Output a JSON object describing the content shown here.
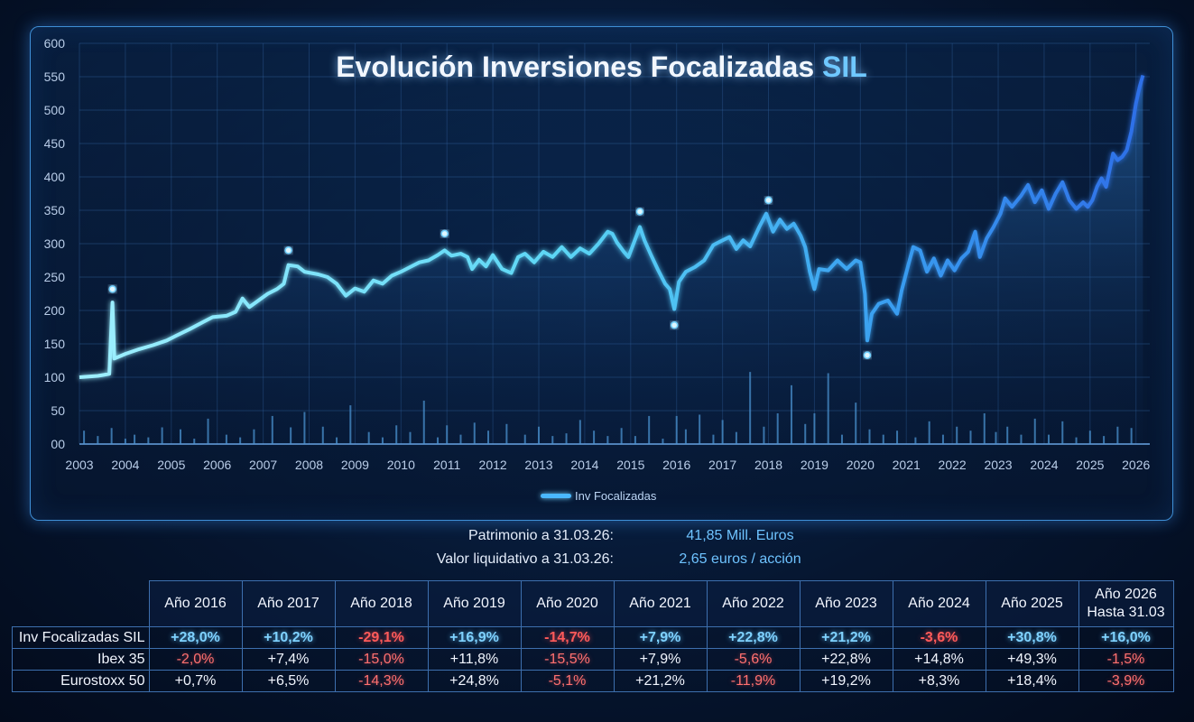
{
  "chart_data": {
    "type": "line",
    "title_main": "Evolución Inversiones Focalizadas",
    "title_accent": "SIL",
    "ylim": [
      0,
      600
    ],
    "yticks": [
      "00",
      "50",
      "100",
      "150",
      "200",
      "250",
      "300",
      "350",
      "400",
      "450",
      "500",
      "550",
      "600"
    ],
    "xlim": [
      2003,
      2026.3
    ],
    "xticks": [
      "2003",
      "2004",
      "2005",
      "2006",
      "2007",
      "2008",
      "2009",
      "2010",
      "2011",
      "2012",
      "2013",
      "2014",
      "2015",
      "2016",
      "2017",
      "2018",
      "2019",
      "2020",
      "2021",
      "2022",
      "2023",
      "2024",
      "2025",
      "2026"
    ],
    "legend": "Inv Focalizadas",
    "grid": true,
    "series": [
      {
        "name": "Inv Focalizadas",
        "points": [
          [
            2003.0,
            100
          ],
          [
            2003.4,
            102
          ],
          [
            2003.65,
            105
          ],
          [
            2003.72,
            212
          ],
          [
            2003.76,
            128
          ],
          [
            2004.0,
            135
          ],
          [
            2004.3,
            142
          ],
          [
            2004.6,
            148
          ],
          [
            2004.9,
            155
          ],
          [
            2005.1,
            162
          ],
          [
            2005.4,
            172
          ],
          [
            2005.7,
            183
          ],
          [
            2005.9,
            190
          ],
          [
            2006.2,
            192
          ],
          [
            2006.4,
            198
          ],
          [
            2006.55,
            218
          ],
          [
            2006.7,
            205
          ],
          [
            2006.9,
            215
          ],
          [
            2007.1,
            225
          ],
          [
            2007.3,
            232
          ],
          [
            2007.45,
            240
          ],
          [
            2007.55,
            268
          ],
          [
            2007.75,
            266
          ],
          [
            2007.9,
            258
          ],
          [
            2008.2,
            254
          ],
          [
            2008.4,
            250
          ],
          [
            2008.6,
            240
          ],
          [
            2008.8,
            222
          ],
          [
            2009.0,
            233
          ],
          [
            2009.2,
            228
          ],
          [
            2009.4,
            245
          ],
          [
            2009.6,
            240
          ],
          [
            2009.8,
            252
          ],
          [
            2010.0,
            258
          ],
          [
            2010.2,
            265
          ],
          [
            2010.4,
            272
          ],
          [
            2010.6,
            275
          ],
          [
            2010.8,
            283
          ],
          [
            2010.95,
            290
          ],
          [
            2011.1,
            282
          ],
          [
            2011.3,
            285
          ],
          [
            2011.45,
            280
          ],
          [
            2011.55,
            262
          ],
          [
            2011.7,
            276
          ],
          [
            2011.85,
            266
          ],
          [
            2012.0,
            283
          ],
          [
            2012.2,
            262
          ],
          [
            2012.4,
            256
          ],
          [
            2012.55,
            280
          ],
          [
            2012.7,
            285
          ],
          [
            2012.9,
            272
          ],
          [
            2013.1,
            288
          ],
          [
            2013.3,
            280
          ],
          [
            2013.5,
            295
          ],
          [
            2013.7,
            280
          ],
          [
            2013.9,
            293
          ],
          [
            2014.1,
            285
          ],
          [
            2014.3,
            300
          ],
          [
            2014.5,
            318
          ],
          [
            2014.6,
            315
          ],
          [
            2014.7,
            302
          ],
          [
            2014.85,
            288
          ],
          [
            2014.95,
            280
          ],
          [
            2015.05,
            298
          ],
          [
            2015.2,
            325
          ],
          [
            2015.3,
            305
          ],
          [
            2015.45,
            282
          ],
          [
            2015.6,
            260
          ],
          [
            2015.75,
            240
          ],
          [
            2015.85,
            232
          ],
          [
            2015.95,
            202
          ],
          [
            2016.05,
            243
          ],
          [
            2016.2,
            258
          ],
          [
            2016.4,
            265
          ],
          [
            2016.6,
            275
          ],
          [
            2016.8,
            298
          ],
          [
            2017.0,
            305
          ],
          [
            2017.15,
            310
          ],
          [
            2017.3,
            292
          ],
          [
            2017.45,
            305
          ],
          [
            2017.6,
            296
          ],
          [
            2017.8,
            325
          ],
          [
            2017.95,
            345
          ],
          [
            2018.1,
            318
          ],
          [
            2018.25,
            336
          ],
          [
            2018.4,
            322
          ],
          [
            2018.55,
            330
          ],
          [
            2018.7,
            312
          ],
          [
            2018.8,
            295
          ],
          [
            2018.9,
            258
          ],
          [
            2019.0,
            232
          ],
          [
            2019.1,
            262
          ],
          [
            2019.3,
            260
          ],
          [
            2019.5,
            275
          ],
          [
            2019.7,
            262
          ],
          [
            2019.9,
            275
          ],
          [
            2020.0,
            272
          ],
          [
            2020.1,
            225
          ],
          [
            2020.15,
            155
          ],
          [
            2020.25,
            195
          ],
          [
            2020.4,
            210
          ],
          [
            2020.6,
            215
          ],
          [
            2020.8,
            195
          ],
          [
            2020.9,
            230
          ],
          [
            2021.05,
            270
          ],
          [
            2021.15,
            295
          ],
          [
            2021.3,
            290
          ],
          [
            2021.45,
            258
          ],
          [
            2021.6,
            278
          ],
          [
            2021.75,
            252
          ],
          [
            2021.9,
            275
          ],
          [
            2022.05,
            260
          ],
          [
            2022.2,
            278
          ],
          [
            2022.35,
            288
          ],
          [
            2022.5,
            318
          ],
          [
            2022.6,
            280
          ],
          [
            2022.75,
            308
          ],
          [
            2022.9,
            325
          ],
          [
            2023.05,
            345
          ],
          [
            2023.15,
            368
          ],
          [
            2023.3,
            355
          ],
          [
            2023.5,
            372
          ],
          [
            2023.65,
            388
          ],
          [
            2023.8,
            362
          ],
          [
            2023.95,
            380
          ],
          [
            2024.1,
            352
          ],
          [
            2024.25,
            375
          ],
          [
            2024.4,
            392
          ],
          [
            2024.55,
            365
          ],
          [
            2024.7,
            352
          ],
          [
            2024.85,
            362
          ],
          [
            2024.95,
            355
          ],
          [
            2025.05,
            365
          ],
          [
            2025.15,
            385
          ],
          [
            2025.25,
            398
          ],
          [
            2025.35,
            385
          ],
          [
            2025.5,
            435
          ],
          [
            2025.6,
            425
          ],
          [
            2025.7,
            430
          ],
          [
            2025.8,
            440
          ],
          [
            2025.9,
            468
          ],
          [
            2026.0,
            510
          ],
          [
            2026.08,
            535
          ],
          [
            2026.15,
            552
          ]
        ]
      }
    ],
    "volume": [
      [
        2003.1,
        20
      ],
      [
        2003.4,
        12
      ],
      [
        2003.7,
        24
      ],
      [
        2004.0,
        8
      ],
      [
        2004.2,
        14
      ],
      [
        2004.5,
        10
      ],
      [
        2004.8,
        25
      ],
      [
        2005.2,
        22
      ],
      [
        2005.5,
        8
      ],
      [
        2005.8,
        38
      ],
      [
        2006.2,
        14
      ],
      [
        2006.5,
        10
      ],
      [
        2006.8,
        22
      ],
      [
        2007.2,
        42
      ],
      [
        2007.6,
        25
      ],
      [
        2007.9,
        48
      ],
      [
        2008.3,
        26
      ],
      [
        2008.6,
        10
      ],
      [
        2008.9,
        58
      ],
      [
        2009.3,
        18
      ],
      [
        2009.6,
        10
      ],
      [
        2009.9,
        28
      ],
      [
        2010.2,
        18
      ],
      [
        2010.5,
        65
      ],
      [
        2010.8,
        10
      ],
      [
        2011.0,
        28
      ],
      [
        2011.3,
        14
      ],
      [
        2011.6,
        32
      ],
      [
        2011.9,
        20
      ],
      [
        2012.3,
        30
      ],
      [
        2012.7,
        14
      ],
      [
        2013.0,
        26
      ],
      [
        2013.3,
        12
      ],
      [
        2013.6,
        16
      ],
      [
        2013.9,
        36
      ],
      [
        2014.2,
        20
      ],
      [
        2014.5,
        12
      ],
      [
        2014.8,
        24
      ],
      [
        2015.1,
        12
      ],
      [
        2015.4,
        42
      ],
      [
        2015.7,
        8
      ],
      [
        2016.0,
        42
      ],
      [
        2016.2,
        22
      ],
      [
        2016.5,
        44
      ],
      [
        2016.8,
        14
      ],
      [
        2017.0,
        36
      ],
      [
        2017.3,
        18
      ],
      [
        2017.6,
        108
      ],
      [
        2017.9,
        26
      ],
      [
        2018.2,
        46
      ],
      [
        2018.5,
        88
      ],
      [
        2018.8,
        30
      ],
      [
        2019.0,
        46
      ],
      [
        2019.3,
        106
      ],
      [
        2019.6,
        14
      ],
      [
        2019.9,
        62
      ],
      [
        2020.2,
        22
      ],
      [
        2020.5,
        14
      ],
      [
        2020.8,
        20
      ],
      [
        2021.2,
        10
      ],
      [
        2021.5,
        34
      ],
      [
        2021.8,
        14
      ],
      [
        2022.1,
        26
      ],
      [
        2022.4,
        20
      ],
      [
        2022.7,
        46
      ],
      [
        2022.95,
        18
      ],
      [
        2023.2,
        26
      ],
      [
        2023.5,
        14
      ],
      [
        2023.8,
        38
      ],
      [
        2024.1,
        14
      ],
      [
        2024.4,
        34
      ],
      [
        2024.7,
        10
      ],
      [
        2025.0,
        20
      ],
      [
        2025.3,
        12
      ],
      [
        2025.6,
        26
      ],
      [
        2025.9,
        24
      ]
    ],
    "markers": [
      [
        2003.72,
        232
      ],
      [
        2007.55,
        290
      ],
      [
        2010.95,
        315
      ],
      [
        2015.2,
        348
      ],
      [
        2015.95,
        178
      ],
      [
        2018.0,
        365
      ],
      [
        2020.15,
        133
      ]
    ]
  },
  "info": {
    "patrimonio_label": "Patrimonio a 31.03.26:",
    "patrimonio_value": "41,85 Mill. Euros",
    "vl_label": "Valor liquidativo a 31.03.26:",
    "vl_value": "2,65 euros / acción"
  },
  "table": {
    "headers": [
      "Año 2016",
      "Año 2017",
      "Año 2018",
      "Año 2019",
      "Año 2020",
      "Año 2021",
      "Año 2022",
      "Año 2023",
      "Año 2024",
      "Año 2025"
    ],
    "last_header_line1": "Año 2026",
    "last_header_line2": "Hasta 31.03",
    "rows": [
      {
        "label": "Inv Focalizadas SIL",
        "values": [
          "+28,0%",
          "+10,2%",
          "-29,1%",
          "+16,9%",
          "-14,7%",
          "+7,9%",
          "+22,8%",
          "+21,2%",
          "-3,6%",
          "+30,8%",
          "+16,0%"
        ]
      },
      {
        "label": "Ibex 35",
        "values": [
          "-2,0%",
          "+7,4%",
          "-15,0%",
          "+11,8%",
          "-15,5%",
          "+7,9%",
          "-5,6%",
          "+22,8%",
          "+14,8%",
          "+49,3%",
          "-1,5%"
        ]
      },
      {
        "label": "Eurostoxx 50",
        "values": [
          "+0,7%",
          "+6,5%",
          "-14,3%",
          "+24,8%",
          "-5,1%",
          "+21,2%",
          "-11,9%",
          "+19,2%",
          "+8,3%",
          "+18,4%",
          "-3,9%"
        ]
      }
    ]
  }
}
